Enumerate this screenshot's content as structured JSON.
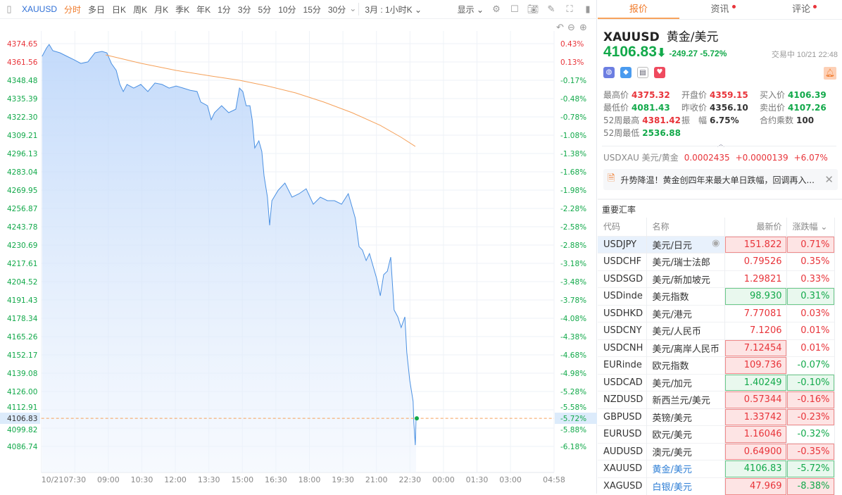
{
  "toolbar": {
    "symbol": "XAUUSD",
    "periods": [
      "分时",
      "多日",
      "日K",
      "周K",
      "月K",
      "季K",
      "年K",
      "1分",
      "3分",
      "5分",
      "10分",
      "15分",
      "30分"
    ],
    "active_period": "分时",
    "range": "3月 : 1小时K",
    "display": "显示"
  },
  "chart_data": {
    "type": "line",
    "title": "XAUUSD 分时",
    "prev_close": 4356.1,
    "current_price": 4106.83,
    "current_pct": "-5.72%",
    "x_ticks": [
      "10/21",
      "07:30",
      "09:00",
      "10:30",
      "12:00",
      "13:30",
      "15:00",
      "16:30",
      "18:00",
      "19:30",
      "21:00",
      "22:30",
      "00:00",
      "01:30",
      "03:00",
      "04:58"
    ],
    "x_unit": "minutes since 06:00",
    "x_range": [
      0,
      1378
    ],
    "y_ticks": [
      "4374.65",
      "4361.56",
      "4348.48",
      "4335.39",
      "4322.30",
      "4309.21",
      "4296.13",
      "4283.04",
      "4269.95",
      "4256.87",
      "4243.78",
      "4230.69",
      "4217.61",
      "4204.52",
      "4191.43",
      "4178.34",
      "4165.26",
      "4152.17",
      "4139.08",
      "4126.00",
      "4112.91",
      "4099.82",
      "4086.74"
    ],
    "y_pct_ticks": [
      "0.43%",
      "0.13%",
      "-0.17%",
      "-0.48%",
      "-0.78%",
      "-1.08%",
      "-1.38%",
      "-1.68%",
      "-1.98%",
      "-2.28%",
      "-2.58%",
      "-2.88%",
      "-3.18%",
      "-3.48%",
      "-3.78%",
      "-4.08%",
      "-4.38%",
      "-4.68%",
      "-4.98%",
      "-5.28%",
      "-5.58%",
      "-5.88%",
      "-6.18%"
    ],
    "series": [
      {
        "name": "price",
        "color": "#4a90e2",
        "points": [
          [
            2,
            4365.6
          ],
          [
            14,
            4371.6
          ],
          [
            21,
            4374.1
          ],
          [
            31,
            4369.6
          ],
          [
            50,
            4368.1
          ],
          [
            69,
            4365.6
          ],
          [
            88,
            4363.1
          ],
          [
            106,
            4360.5
          ],
          [
            125,
            4361.6
          ],
          [
            144,
            4368.1
          ],
          [
            163,
            4369.1
          ],
          [
            176,
            4368.1
          ],
          [
            188,
            4360.5
          ],
          [
            201,
            4355.5
          ],
          [
            211,
            4345.5
          ],
          [
            220,
            4340.4
          ],
          [
            230,
            4345.5
          ],
          [
            248,
            4342.9
          ],
          [
            267,
            4345.5
          ],
          [
            286,
            4340.4
          ],
          [
            305,
            4346.5
          ],
          [
            324,
            4345.5
          ],
          [
            343,
            4342.9
          ],
          [
            362,
            4344.4
          ],
          [
            381,
            4342.9
          ],
          [
            399,
            4341.4
          ],
          [
            418,
            4340.4
          ],
          [
            428,
            4332.9
          ],
          [
            446,
            4330.3
          ],
          [
            456,
            4320.3
          ],
          [
            465,
            4325.3
          ],
          [
            484,
            4330.3
          ],
          [
            503,
            4325.3
          ],
          [
            522,
            4327.8
          ],
          [
            532,
            4342.9
          ],
          [
            541,
            4340.4
          ],
          [
            550,
            4330.3
          ],
          [
            560,
            4330.3
          ],
          [
            566,
            4320.3
          ],
          [
            573,
            4300.1
          ],
          [
            584,
            4305.2
          ],
          [
            592,
            4297.6
          ],
          [
            598,
            4280.0
          ],
          [
            607,
            4264.9
          ],
          [
            613,
            4244.8
          ],
          [
            619,
            4262.4
          ],
          [
            636,
            4269.9
          ],
          [
            654,
            4275.0
          ],
          [
            673,
            4264.9
          ],
          [
            692,
            4267.4
          ],
          [
            711,
            4270.9
          ],
          [
            730,
            4259.9
          ],
          [
            749,
            4264.9
          ],
          [
            768,
            4262.4
          ],
          [
            787,
            4262.4
          ],
          [
            806,
            4259.9
          ],
          [
            824,
            4267.4
          ],
          [
            843,
            4249.8
          ],
          [
            853,
            4229.6
          ],
          [
            862,
            4227.1
          ],
          [
            872,
            4219.6
          ],
          [
            881,
            4224.6
          ],
          [
            900,
            4207.0
          ],
          [
            910,
            4194.4
          ],
          [
            919,
            4209.5
          ],
          [
            929,
            4212.0
          ],
          [
            938,
            4222.1
          ],
          [
            947,
            4184.3
          ],
          [
            957,
            4179.3
          ],
          [
            966,
            4171.7
          ],
          [
            976,
            4179.3
          ],
          [
            981,
            4154.1
          ],
          [
            989,
            4134.0
          ],
          [
            998,
            4118.9
          ],
          [
            1000,
            4103.8
          ],
          [
            1004,
            4087.7
          ],
          [
            1006,
            4106.8
          ]
        ]
      },
      {
        "name": "average",
        "color": "#f5a15a",
        "points": [
          [
            173,
            4366.6
          ],
          [
            267,
            4360.6
          ],
          [
            362,
            4355.5
          ],
          [
            456,
            4351.5
          ],
          [
            532,
            4348.5
          ],
          [
            607,
            4344.4
          ],
          [
            683,
            4339.4
          ],
          [
            758,
            4332.9
          ],
          [
            834,
            4325.3
          ],
          [
            910,
            4316.2
          ],
          [
            966,
            4307.7
          ],
          [
            1004,
            4301.2
          ]
        ]
      }
    ]
  },
  "quote": {
    "tabs": [
      "报价",
      "资讯",
      "评论"
    ],
    "symbol": "XAUUSD",
    "name": "黄金/美元",
    "price": "4106.83",
    "arrow": "⬇",
    "change": "-249.27",
    "pct": "-5.72%",
    "status": "交易中 10/21 22:48",
    "stats": [
      [
        {
          "l": "最高价",
          "v": "4375.32",
          "c": "up"
        },
        {
          "l": "开盘价",
          "v": "4359.15",
          "c": "up"
        },
        {
          "l": "买入价",
          "v": "4106.39",
          "c": "dn"
        }
      ],
      [
        {
          "l": "最低价",
          "v": "4081.43",
          "c": "dn"
        },
        {
          "l": "昨收价",
          "v": "4356.10",
          "c": "nt"
        },
        {
          "l": "卖出价",
          "v": "4107.26",
          "c": "dn"
        }
      ],
      [
        {
          "l": "52周最高",
          "v": "4381.42",
          "c": "up"
        },
        {
          "l": "振　幅",
          "v": "6.75%",
          "c": "nt"
        },
        {
          "l": "合约乘数",
          "v": "100",
          "c": "nt"
        }
      ],
      [
        {
          "l": "52周最低",
          "v": "2536.88",
          "c": "dn"
        }
      ]
    ],
    "usdxau": {
      "label": "USDXAU 美元/黄金",
      "price": "0.0002435",
      "change": "+0.0000139",
      "pct": "+6.07%"
    },
    "news": "升势降温！黄金创四年来最大单日跌幅，回调再入..."
  },
  "rates": {
    "title": "重要汇率",
    "headers": [
      "代码",
      "名称",
      "最新价",
      "涨跌幅"
    ],
    "rows": [
      {
        "code": "USDJPY",
        "name": "美元/日元",
        "price": "151.822",
        "pct": "0.71%",
        "pc": "up",
        "cc": "up",
        "pb": "r",
        "cb": "r"
      },
      {
        "code": "USDCHF",
        "name": "美元/瑞士法郎",
        "price": "0.79526",
        "pct": "0.35%",
        "pc": "up",
        "cc": "up",
        "pb": "",
        "cb": ""
      },
      {
        "code": "USDSGD",
        "name": "美元/新加坡元",
        "price": "1.29821",
        "pct": "0.33%",
        "pc": "up",
        "cc": "up",
        "pb": "",
        "cb": ""
      },
      {
        "code": "USDinde",
        "name": "美元指数",
        "price": "98.930",
        "pct": "0.31%",
        "pc": "dn",
        "cc": "dn",
        "pb": "g",
        "cb": "g"
      },
      {
        "code": "USDHKD",
        "name": "美元/港元",
        "price": "7.77081",
        "pct": "0.03%",
        "pc": "up",
        "cc": "up",
        "pb": "",
        "cb": ""
      },
      {
        "code": "USDCNY",
        "name": "美元/人民币",
        "price": "7.1206",
        "pct": "0.01%",
        "pc": "up",
        "cc": "up",
        "pb": "",
        "cb": ""
      },
      {
        "code": "USDCNH",
        "name": "美元/离岸人民币",
        "price": "7.12454",
        "pct": "0.01%",
        "pc": "up",
        "cc": "up",
        "pb": "r",
        "cb": ""
      },
      {
        "code": "EURinde",
        "name": "欧元指数",
        "price": "109.736",
        "pct": "-0.07%",
        "pc": "up",
        "cc": "dn",
        "pb": "r",
        "cb": ""
      },
      {
        "code": "USDCAD",
        "name": "美元/加元",
        "price": "1.40249",
        "pct": "-0.10%",
        "pc": "dn",
        "cc": "dn",
        "pb": "g",
        "cb": "g"
      },
      {
        "code": "NZDUSD",
        "name": "新西兰元/美元",
        "price": "0.57344",
        "pct": "-0.16%",
        "pc": "up",
        "cc": "up",
        "pb": "r",
        "cb": "r"
      },
      {
        "code": "GBPUSD",
        "name": "英镑/美元",
        "price": "1.33742",
        "pct": "-0.23%",
        "pc": "up",
        "cc": "up",
        "pb": "r",
        "cb": "r"
      },
      {
        "code": "EURUSD",
        "name": "欧元/美元",
        "price": "1.16046",
        "pct": "-0.32%",
        "pc": "up",
        "cc": "dn",
        "pb": "r",
        "cb": ""
      },
      {
        "code": "AUDUSD",
        "name": "澳元/美元",
        "price": "0.64900",
        "pct": "-0.35%",
        "pc": "up",
        "cc": "up",
        "pb": "r",
        "cb": "r"
      },
      {
        "code": "XAUUSD",
        "name": "黄金/美元",
        "price": "4106.83",
        "pct": "-5.72%",
        "pc": "dn",
        "cc": "dn",
        "pb": "g",
        "cb": "g",
        "blue": true
      },
      {
        "code": "XAGUSD",
        "name": "白银/美元",
        "price": "47.969",
        "pct": "-8.38%",
        "pc": "up",
        "cc": "dn",
        "pb": "r",
        "cb": "r",
        "blue": true
      }
    ]
  }
}
